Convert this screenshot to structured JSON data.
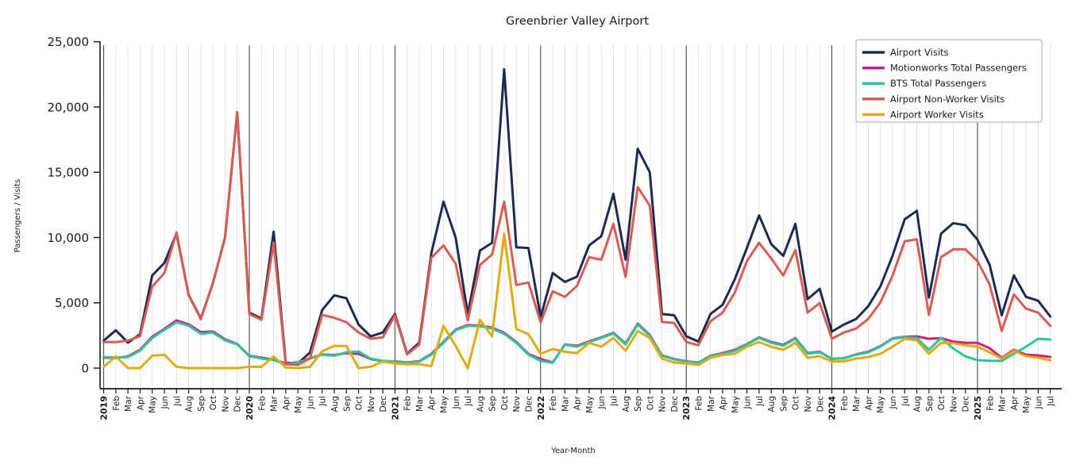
{
  "title": "Greenbrier Valley Airport",
  "axes": {
    "xlabel": "Year-Month",
    "ylabel": "Passengers / Visits",
    "ytick_labels": [
      "0",
      "5,000",
      "10,000",
      "15,000",
      "20,000",
      "25,000"
    ]
  },
  "chart_data": {
    "type": "line",
    "title": "Greenbrier Valley Airport",
    "xlabel": "Year-Month",
    "ylabel": "Passengers / Visits",
    "ylim": [
      0,
      25000
    ],
    "yticks": [
      0,
      5000,
      10000,
      15000,
      20000,
      25000
    ],
    "grid": "light vertical gridline at every month; darker vertical line at each January (year boundary)",
    "legend_position": "upper right",
    "x_labels": [
      "2019",
      "Feb",
      "Mar",
      "Apr",
      "May",
      "Jun",
      "Jul",
      "Aug",
      "Sep",
      "Oct",
      "Nov",
      "Dec",
      "2020",
      "Feb",
      "Mar",
      "Apr",
      "May",
      "Jun",
      "Jul",
      "Aug",
      "Sep",
      "Oct",
      "Nov",
      "Dec",
      "2021",
      "Feb",
      "Mar",
      "Apr",
      "May",
      "Jun",
      "Jul",
      "Aug",
      "Sep",
      "Oct",
      "Nov",
      "Dec",
      "2022",
      "Feb",
      "Mar",
      "Apr",
      "May",
      "Jun",
      "Jul",
      "Aug",
      "Sep",
      "Oct",
      "Nov",
      "Dec",
      "2023",
      "Feb",
      "Mar",
      "Apr",
      "May",
      "Jun",
      "Jul",
      "Aug",
      "Sep",
      "Oct",
      "Nov",
      "Dec",
      "2024",
      "Feb",
      "Mar",
      "Apr",
      "May",
      "Jun",
      "Jul",
      "Aug",
      "Sep",
      "Oct",
      "Nov",
      "Dec",
      "2025",
      "Feb",
      "Mar",
      "Apr",
      "May",
      "Jun",
      "Jul"
    ],
    "series": [
      {
        "name": "Airport Visits",
        "color": "#1f2a54",
        "values": [
          2100,
          2900,
          1950,
          2600,
          7100,
          8050,
          10300,
          5600,
          3800,
          6500,
          10000,
          19600,
          4250,
          3800,
          10450,
          420,
          350,
          1200,
          4450,
          5580,
          5350,
          3340,
          2430,
          2730,
          4150,
          1100,
          1950,
          8800,
          12750,
          10000,
          4130,
          9000,
          9600,
          22900,
          9250,
          9200,
          3900,
          7280,
          6600,
          7000,
          9400,
          10100,
          13350,
          8310,
          16800,
          15000,
          4150,
          4050,
          2450,
          2030,
          4150,
          4850,
          6800,
          9200,
          11700,
          9500,
          8600,
          11050,
          5280,
          6070,
          2800,
          3340,
          3760,
          4740,
          6260,
          8600,
          11400,
          12050,
          5400,
          10300,
          11100,
          10950,
          9830,
          7900,
          4050,
          7100,
          5460,
          5160,
          3950
        ]
      },
      {
        "name": "Motionworks Total Passengers",
        "color": "#d11b7f",
        "values": [
          800,
          780,
          900,
          1400,
          2400,
          3000,
          3650,
          3350,
          2750,
          2800,
          2200,
          1850,
          950,
          800,
          650,
          350,
          450,
          750,
          1050,
          1000,
          1150,
          1100,
          700,
          520,
          520,
          430,
          530,
          1080,
          2000,
          2950,
          3300,
          3250,
          3100,
          2700,
          2000,
          1080,
          700,
          430,
          1820,
          1700,
          2050,
          2350,
          2700,
          1880,
          3400,
          2520,
          980,
          700,
          520,
          430,
          950,
          1150,
          1400,
          1850,
          2350,
          2000,
          1780,
          2300,
          1150,
          1250,
          700,
          760,
          1050,
          1250,
          1680,
          2280,
          2400,
          2430,
          2250,
          2300,
          2030,
          1940,
          1940,
          1520,
          790,
          1400,
          1030,
          970,
          850
        ]
      },
      {
        "name": "BTS Total Passengers",
        "color": "#2ec4a0",
        "values": [
          850,
          800,
          850,
          1330,
          2310,
          2920,
          3520,
          3250,
          2630,
          2730,
          2120,
          1820,
          910,
          730,
          620,
          300,
          420,
          730,
          1030,
          950,
          1210,
          1270,
          730,
          550,
          500,
          400,
          500,
          1030,
          1940,
          2900,
          3230,
          3200,
          3030,
          2630,
          1940,
          1030,
          550,
          400,
          1800,
          1640,
          2000,
          2310,
          2650,
          1820,
          3340,
          2450,
          950,
          670,
          500,
          420,
          910,
          1100,
          1330,
          1820,
          2310,
          1940,
          1720,
          2250,
          1100,
          1210,
          730,
          750,
          1030,
          1210,
          1640,
          2250,
          2370,
          2310,
          1400,
          2310,
          1500,
          900,
          610,
          550,
          550,
          1100,
          1640,
          2250,
          2180
        ]
      },
      {
        "name": "Airport Non-Worker Visits",
        "color": "#d85c54",
        "values": [
          2000,
          2000,
          2100,
          2450,
          6250,
          7280,
          10400,
          5580,
          3750,
          6500,
          10000,
          19600,
          4150,
          3700,
          9620,
          300,
          250,
          750,
          4070,
          3850,
          3520,
          2730,
          2250,
          2350,
          4050,
          1050,
          1800,
          8450,
          9400,
          8000,
          3650,
          7900,
          8700,
          12750,
          6370,
          6550,
          3500,
          5880,
          5460,
          6300,
          8500,
          8300,
          11050,
          6980,
          13870,
          12440,
          3540,
          3460,
          2000,
          1750,
          3600,
          4250,
          5770,
          8190,
          9600,
          8400,
          7100,
          9040,
          4250,
          4980,
          2250,
          2730,
          3030,
          3760,
          5040,
          7080,
          9710,
          9870,
          4070,
          8500,
          9100,
          9100,
          8190,
          6400,
          2850,
          5650,
          4550,
          4250,
          3230
        ]
      },
      {
        "name": "Airport Worker Visits",
        "color": "#e2ab0d",
        "values": [
          100,
          900,
          0,
          0,
          950,
          1030,
          100,
          0,
          0,
          0,
          0,
          0,
          100,
          100,
          900,
          50,
          0,
          100,
          1290,
          1700,
          1690,
          0,
          100,
          500,
          350,
          300,
          300,
          150,
          3230,
          1700,
          0,
          3700,
          2430,
          10300,
          3000,
          2600,
          1100,
          1460,
          1250,
          1150,
          1940,
          1640,
          2310,
          1330,
          2850,
          2300,
          730,
          430,
          360,
          240,
          790,
          1000,
          1100,
          1640,
          2000,
          1640,
          1400,
          1940,
          790,
          910,
          500,
          520,
          730,
          850,
          1100,
          1640,
          2250,
          2120,
          1100,
          1940,
          1900,
          1750,
          1640,
          1210,
          730,
          1330,
          910,
          790,
          610
        ]
      }
    ]
  }
}
